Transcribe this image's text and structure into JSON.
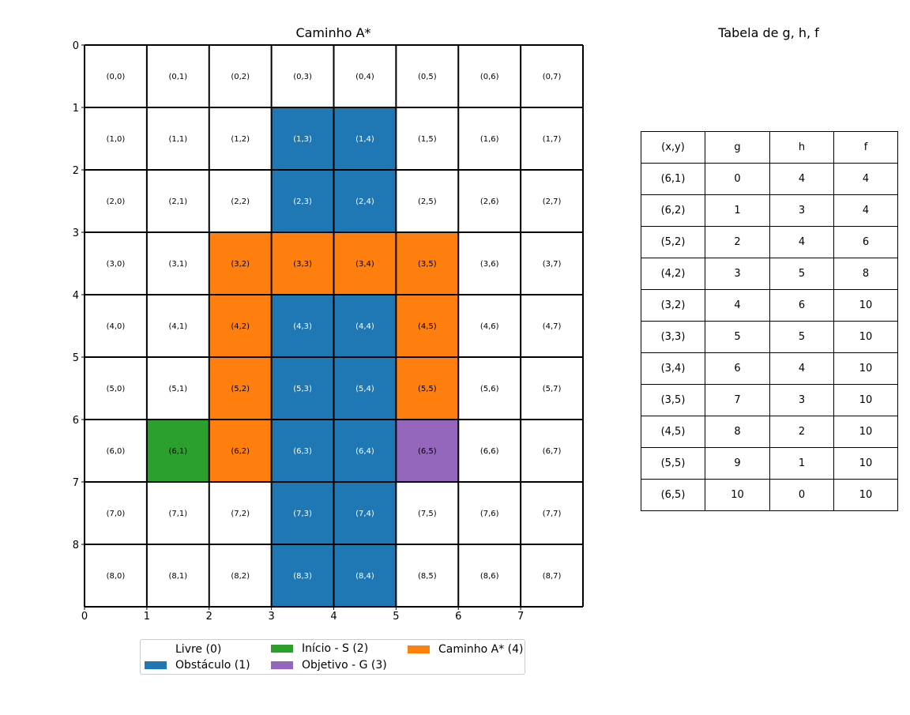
{
  "grid_title": "Caminho A*",
  "table_title": "Tabela de g, h, f",
  "colors": {
    "free": "#ffffff",
    "obstacle": "#1f77b4",
    "start": "#2ca02c",
    "goal": "#9467bd",
    "path": "#ff7f0e"
  },
  "chart_data": [
    {
      "type": "heatmap",
      "title": "Caminho A*",
      "rows": 9,
      "cols": 8,
      "x_ticks": [
        "0",
        "1",
        "2",
        "3",
        "4",
        "5",
        "6",
        "7"
      ],
      "y_ticks": [
        "0",
        "1",
        "2",
        "3",
        "4",
        "5",
        "6",
        "7",
        "8"
      ],
      "grid": [
        [
          0,
          0,
          0,
          0,
          0,
          0,
          0,
          0
        ],
        [
          0,
          0,
          0,
          1,
          1,
          0,
          0,
          0
        ],
        [
          0,
          0,
          0,
          1,
          1,
          0,
          0,
          0
        ],
        [
          0,
          0,
          4,
          4,
          4,
          4,
          0,
          0
        ],
        [
          0,
          0,
          4,
          1,
          1,
          4,
          0,
          0
        ],
        [
          0,
          0,
          4,
          1,
          1,
          4,
          0,
          0
        ],
        [
          0,
          2,
          4,
          1,
          1,
          3,
          0,
          0
        ],
        [
          0,
          0,
          0,
          1,
          1,
          0,
          0,
          0
        ],
        [
          0,
          0,
          0,
          1,
          1,
          0,
          0,
          0
        ]
      ],
      "cell_labels": [
        [
          "(0,0)",
          "(0,1)",
          "(0,2)",
          "(0,3)",
          "(0,4)",
          "(0,5)",
          "(0,6)",
          "(0,7)"
        ],
        [
          "(1,0)",
          "(1,1)",
          "(1,2)",
          "(1,3)",
          "(1,4)",
          "(1,5)",
          "(1,6)",
          "(1,7)"
        ],
        [
          "(2,0)",
          "(2,1)",
          "(2,2)",
          "(2,3)",
          "(2,4)",
          "(2,5)",
          "(2,6)",
          "(2,7)"
        ],
        [
          "(3,0)",
          "(3,1)",
          "(3,2)",
          "(3,3)",
          "(3,4)",
          "(3,5)",
          "(3,6)",
          "(3,7)"
        ],
        [
          "(4,0)",
          "(4,1)",
          "(4,2)",
          "(4,3)",
          "(4,4)",
          "(4,5)",
          "(4,6)",
          "(4,7)"
        ],
        [
          "(5,0)",
          "(5,1)",
          "(5,2)",
          "(5,3)",
          "(5,4)",
          "(5,5)",
          "(5,6)",
          "(5,7)"
        ],
        [
          "(6,0)",
          "(6,1)",
          "(6,2)",
          "(6,3)",
          "(6,4)",
          "(6,5)",
          "(6,6)",
          "(6,7)"
        ],
        [
          "(7,0)",
          "(7,1)",
          "(7,2)",
          "(7,3)",
          "(7,4)",
          "(7,5)",
          "(7,6)",
          "(7,7)"
        ],
        [
          "(8,0)",
          "(8,1)",
          "(8,2)",
          "(8,3)",
          "(8,4)",
          "(8,5)",
          "(8,6)",
          "(8,7)"
        ]
      ],
      "legend": [
        {
          "label": "Livre (0)",
          "value": 0
        },
        {
          "label": "Obstáculo (1)",
          "value": 1
        },
        {
          "label": "Início - S (2)",
          "value": 2
        },
        {
          "label": "Objetivo - G (3)",
          "value": 3
        },
        {
          "label": "Caminho A* (4)",
          "value": 4
        }
      ],
      "legend_position": "bottom"
    },
    {
      "type": "table",
      "title": "Tabela de g, h, f",
      "columns": [
        "(x,y)",
        "g",
        "h",
        "f"
      ],
      "rows": [
        [
          "(6,1)",
          "0",
          "4",
          "4"
        ],
        [
          "(6,2)",
          "1",
          "3",
          "4"
        ],
        [
          "(5,2)",
          "2",
          "4",
          "6"
        ],
        [
          "(4,2)",
          "3",
          "5",
          "8"
        ],
        [
          "(3,2)",
          "4",
          "6",
          "10"
        ],
        [
          "(3,3)",
          "5",
          "5",
          "10"
        ],
        [
          "(3,4)",
          "6",
          "4",
          "10"
        ],
        [
          "(3,5)",
          "7",
          "3",
          "10"
        ],
        [
          "(4,5)",
          "8",
          "2",
          "10"
        ],
        [
          "(5,5)",
          "9",
          "1",
          "10"
        ],
        [
          "(6,5)",
          "10",
          "0",
          "10"
        ]
      ]
    }
  ]
}
